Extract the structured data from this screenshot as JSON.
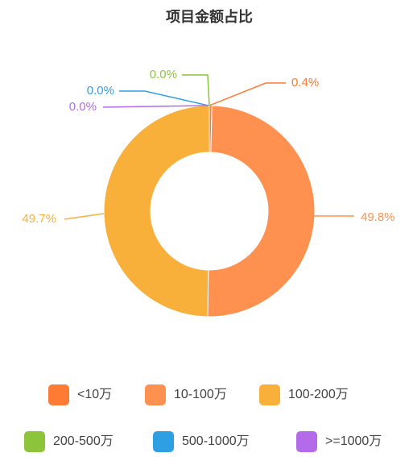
{
  "chart_data": {
    "type": "donut",
    "title": "项目金额占比",
    "categories": [
      "<10万",
      "10-100万",
      "100-200万",
      "200-500万",
      "500-1000万",
      ">=1000万"
    ],
    "values": [
      0.4,
      49.8,
      49.7,
      0.0,
      0.0,
      0.0
    ],
    "value_labels": [
      "0.4%",
      "49.8%",
      "49.7%",
      "0.0%",
      "0.0%",
      "0.0%"
    ],
    "colors": [
      "#ff7a32",
      "#ff9150",
      "#f9b03a",
      "#8cc43b",
      "#2f9fe3",
      "#b36bea"
    ],
    "legend": "bottom"
  }
}
